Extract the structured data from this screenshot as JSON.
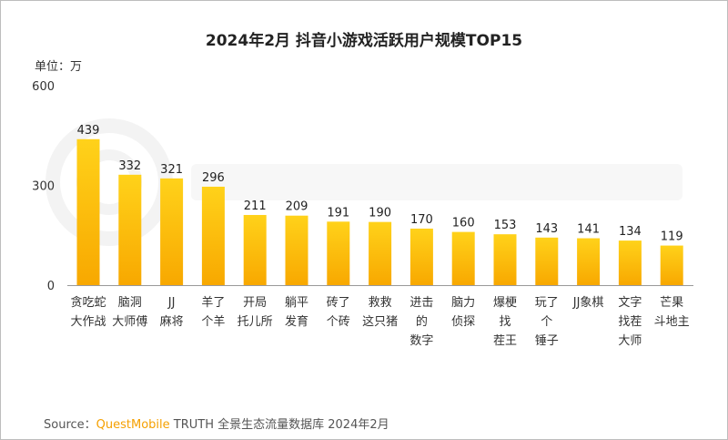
{
  "watermark": "QUESTMOBILE",
  "source": {
    "prefix": "Source：",
    "brand": "QuestMobile",
    "text": "TRUTH 全景生态流量数据库 2024年2月"
  },
  "colors": {
    "bar_top": "#ffd21a",
    "bar_bottom": "#f8a800",
    "axis": "#999999"
  },
  "chart_data": {
    "type": "bar",
    "title": "2024年2月 抖音小游戏活跃用户规模TOP15",
    "ylabel": "单位：万",
    "ylim": [
      0,
      600
    ],
    "yticks": [
      0,
      300,
      600
    ],
    "grid": false,
    "categories": [
      "贪吃蛇\n大作战",
      "脑洞\n大师傅",
      "JJ\n麻将",
      "羊了\n个羊",
      "开局\n托儿所",
      "躺平\n发育",
      "砖了\n个砖",
      "救救\n这只猪",
      "进击\n的\n数字",
      "脑力\n侦探",
      "爆梗\n找\n茬王",
      "玩了\n个\n锤子",
      "JJ象棋",
      "文字\n找茬\n大师",
      "芒果\n斗地主"
    ],
    "values": [
      439,
      332,
      321,
      296,
      211,
      209,
      191,
      190,
      170,
      160,
      153,
      143,
      141,
      134,
      119
    ]
  }
}
